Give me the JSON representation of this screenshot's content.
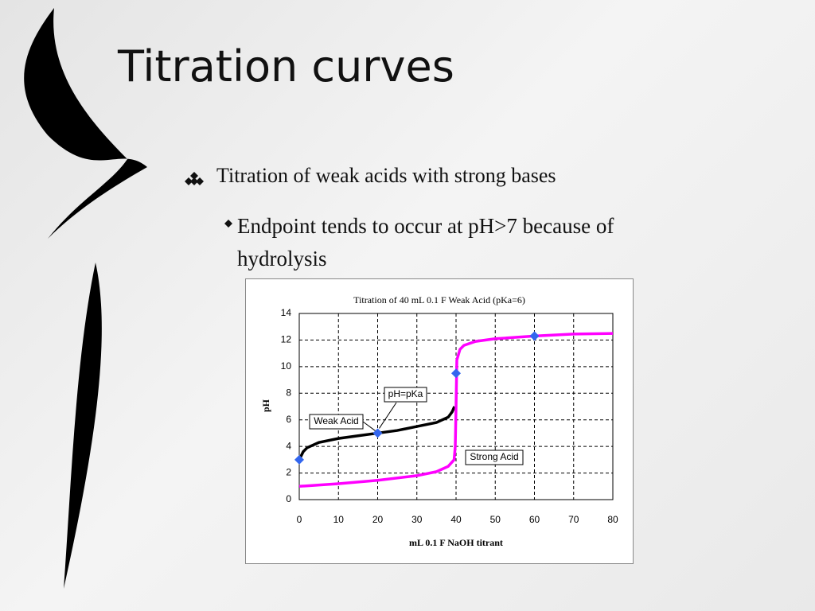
{
  "slide": {
    "title": "Titration curves",
    "bullets": [
      {
        "text": "Titration of weak acids with strong bases",
        "sub": [
          "Endpoint tends to occur at pH>7 because of hydrolysis"
        ]
      }
    ]
  },
  "chart_data": {
    "type": "line",
    "title": "Titration of 40 mL 0.1 F Weak Acid (pKa=6)",
    "x_label": "mL 0.1 F NaOH titrant",
    "y_label": "pH",
    "xlim": [
      0,
      80
    ],
    "xticks": [
      0,
      10,
      20,
      30,
      40,
      50,
      60,
      70,
      80
    ],
    "ylim": [
      0,
      14
    ],
    "yticks": [
      0,
      2,
      4,
      6,
      8,
      10,
      12,
      14
    ],
    "grid": true,
    "series": [
      {
        "name": "Weak Acid",
        "color": "#000000",
        "x": [
          0,
          1,
          2,
          5,
          10,
          15,
          20,
          25,
          30,
          35,
          38,
          39,
          39.6
        ],
        "values": [
          3,
          3.6,
          3.9,
          4.3,
          4.6,
          4.8,
          5.0,
          5.2,
          5.5,
          5.8,
          6.2,
          6.6,
          7.0
        ]
      },
      {
        "name": "Strong Acid",
        "color": "#ff00ff",
        "x": [
          0,
          10,
          20,
          30,
          35,
          38,
          39.5,
          39.8,
          40,
          40.2,
          41,
          42,
          45,
          50,
          60,
          70,
          80
        ],
        "values": [
          1,
          1.2,
          1.45,
          1.8,
          2.1,
          2.5,
          3,
          4,
          7,
          10.5,
          11.3,
          11.6,
          11.9,
          12.1,
          12.3,
          12.45,
          12.5
        ]
      }
    ],
    "points": {
      "color": "#3366ee",
      "x": [
        0,
        20,
        40,
        60
      ],
      "y": [
        3,
        5,
        9.5,
        12.3
      ]
    },
    "annotation": "pH=pKa"
  }
}
